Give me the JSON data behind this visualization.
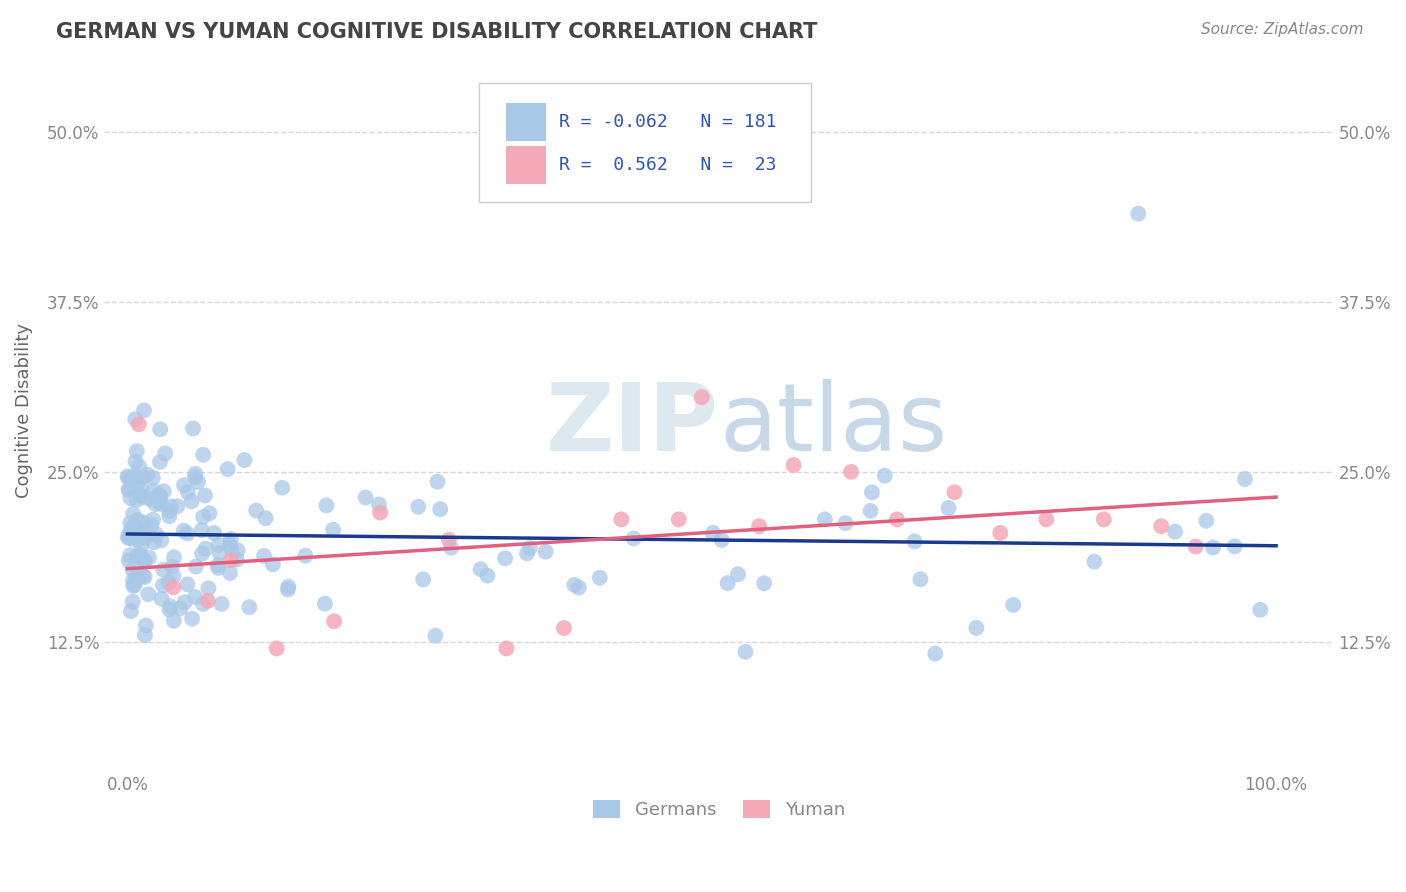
{
  "title": "GERMAN VS YUMAN COGNITIVE DISABILITY CORRELATION CHART",
  "source": "Source: ZipAtlas.com",
  "ylabel_label": "Cognitive Disability",
  "legend_labels": [
    "Germans",
    "Yuman"
  ],
  "r_german": -0.062,
  "n_german": 181,
  "r_yuman": 0.562,
  "n_yuman": 23,
  "color_german": "#a8c8e8",
  "color_yuman": "#f4a8b8",
  "trendline_german": "#1a3a8f",
  "trendline_yuman": "#e06080",
  "watermark_color": "#dde8f0",
  "background_color": "#ffffff",
  "grid_color": "#cccccc",
  "title_color": "#444444",
  "source_color": "#888888",
  "tick_color": "#888888",
  "ylabel_color": "#666666",
  "legend_text_color": "#3355aa",
  "xlim": [
    -0.02,
    1.05
  ],
  "ylim": [
    0.03,
    0.56
  ],
  "yticks": [
    0.125,
    0.25,
    0.375,
    0.5
  ],
  "ytick_labels": [
    "12.5%",
    "25.0%",
    "37.5%",
    "50.0%"
  ],
  "xticks": [
    0.0,
    1.0
  ],
  "xtick_labels": [
    "0.0%",
    "100.0%"
  ]
}
